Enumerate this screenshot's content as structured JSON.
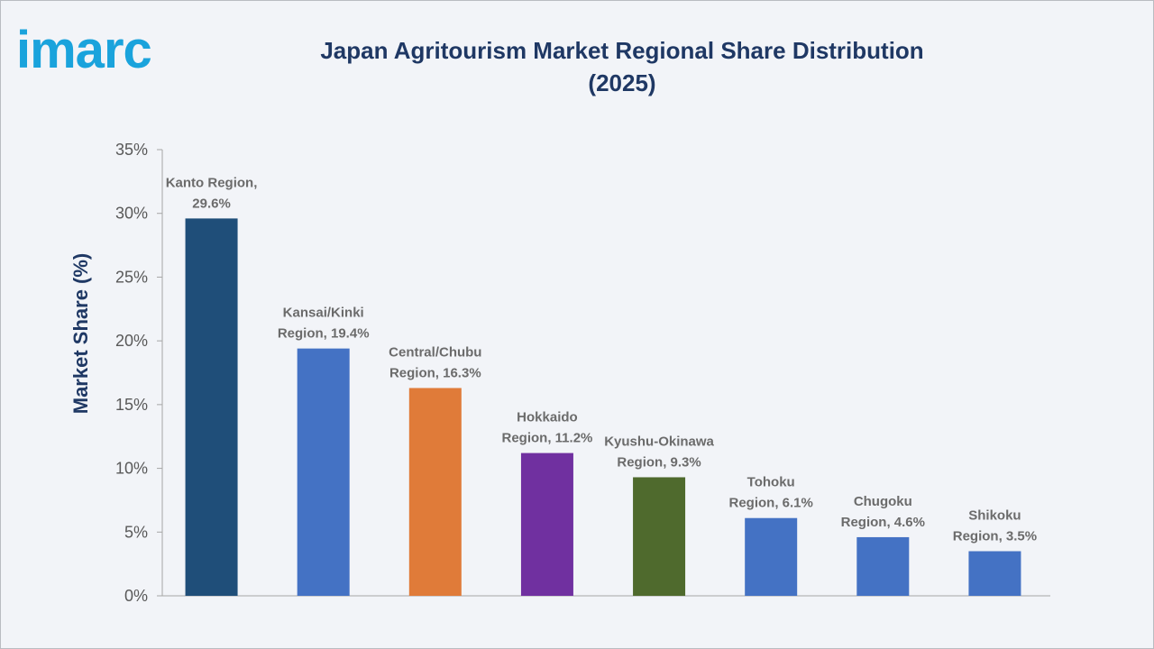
{
  "brand": {
    "logo_text": "imarc",
    "color": "#1aa3dc"
  },
  "title_line1": "Japan Agritourism Market Regional Share Distribution",
  "title_line2": "(2025)",
  "chart_data": {
    "type": "bar",
    "title": "Japan Agritourism Market Regional Share Distribution (2025)",
    "xlabel": "",
    "ylabel": "Market Share (%)",
    "ylim": [
      0,
      35
    ],
    "yticks": [
      "0%",
      "5%",
      "10%",
      "15%",
      "20%",
      "25%",
      "30%",
      "35%"
    ],
    "grid": false,
    "categories": [
      "Kanto Region",
      "Kansai/Kinki Region",
      "Central/Chubu Region",
      "Hokkaido Region",
      "Kyushu-Okinawa Region",
      "Tohoku Region",
      "Chugoku Region",
      "Shikoku Region"
    ],
    "values": [
      29.6,
      19.4,
      16.3,
      11.2,
      9.3,
      6.1,
      4.6,
      3.5
    ],
    "labels": [
      [
        "Kanto Region,",
        "29.6%"
      ],
      [
        "Kansai/Kinki",
        "Region, 19.4%"
      ],
      [
        "Central/Chubu",
        "Region, 16.3%"
      ],
      [
        "Hokkaido",
        "Region, 11.2%"
      ],
      [
        "Kyushu-Okinawa",
        "Region, 9.3%"
      ],
      [
        "Tohoku",
        "Region, 6.1%"
      ],
      [
        "Chugoku",
        "Region, 4.6%"
      ],
      [
        "Shikoku",
        "Region, 3.5%"
      ]
    ],
    "colors": [
      "#1f4e79",
      "#4472c4",
      "#e07b39",
      "#7030a0",
      "#4f6a2d",
      "#4472c4",
      "#4472c4",
      "#4472c4"
    ]
  }
}
